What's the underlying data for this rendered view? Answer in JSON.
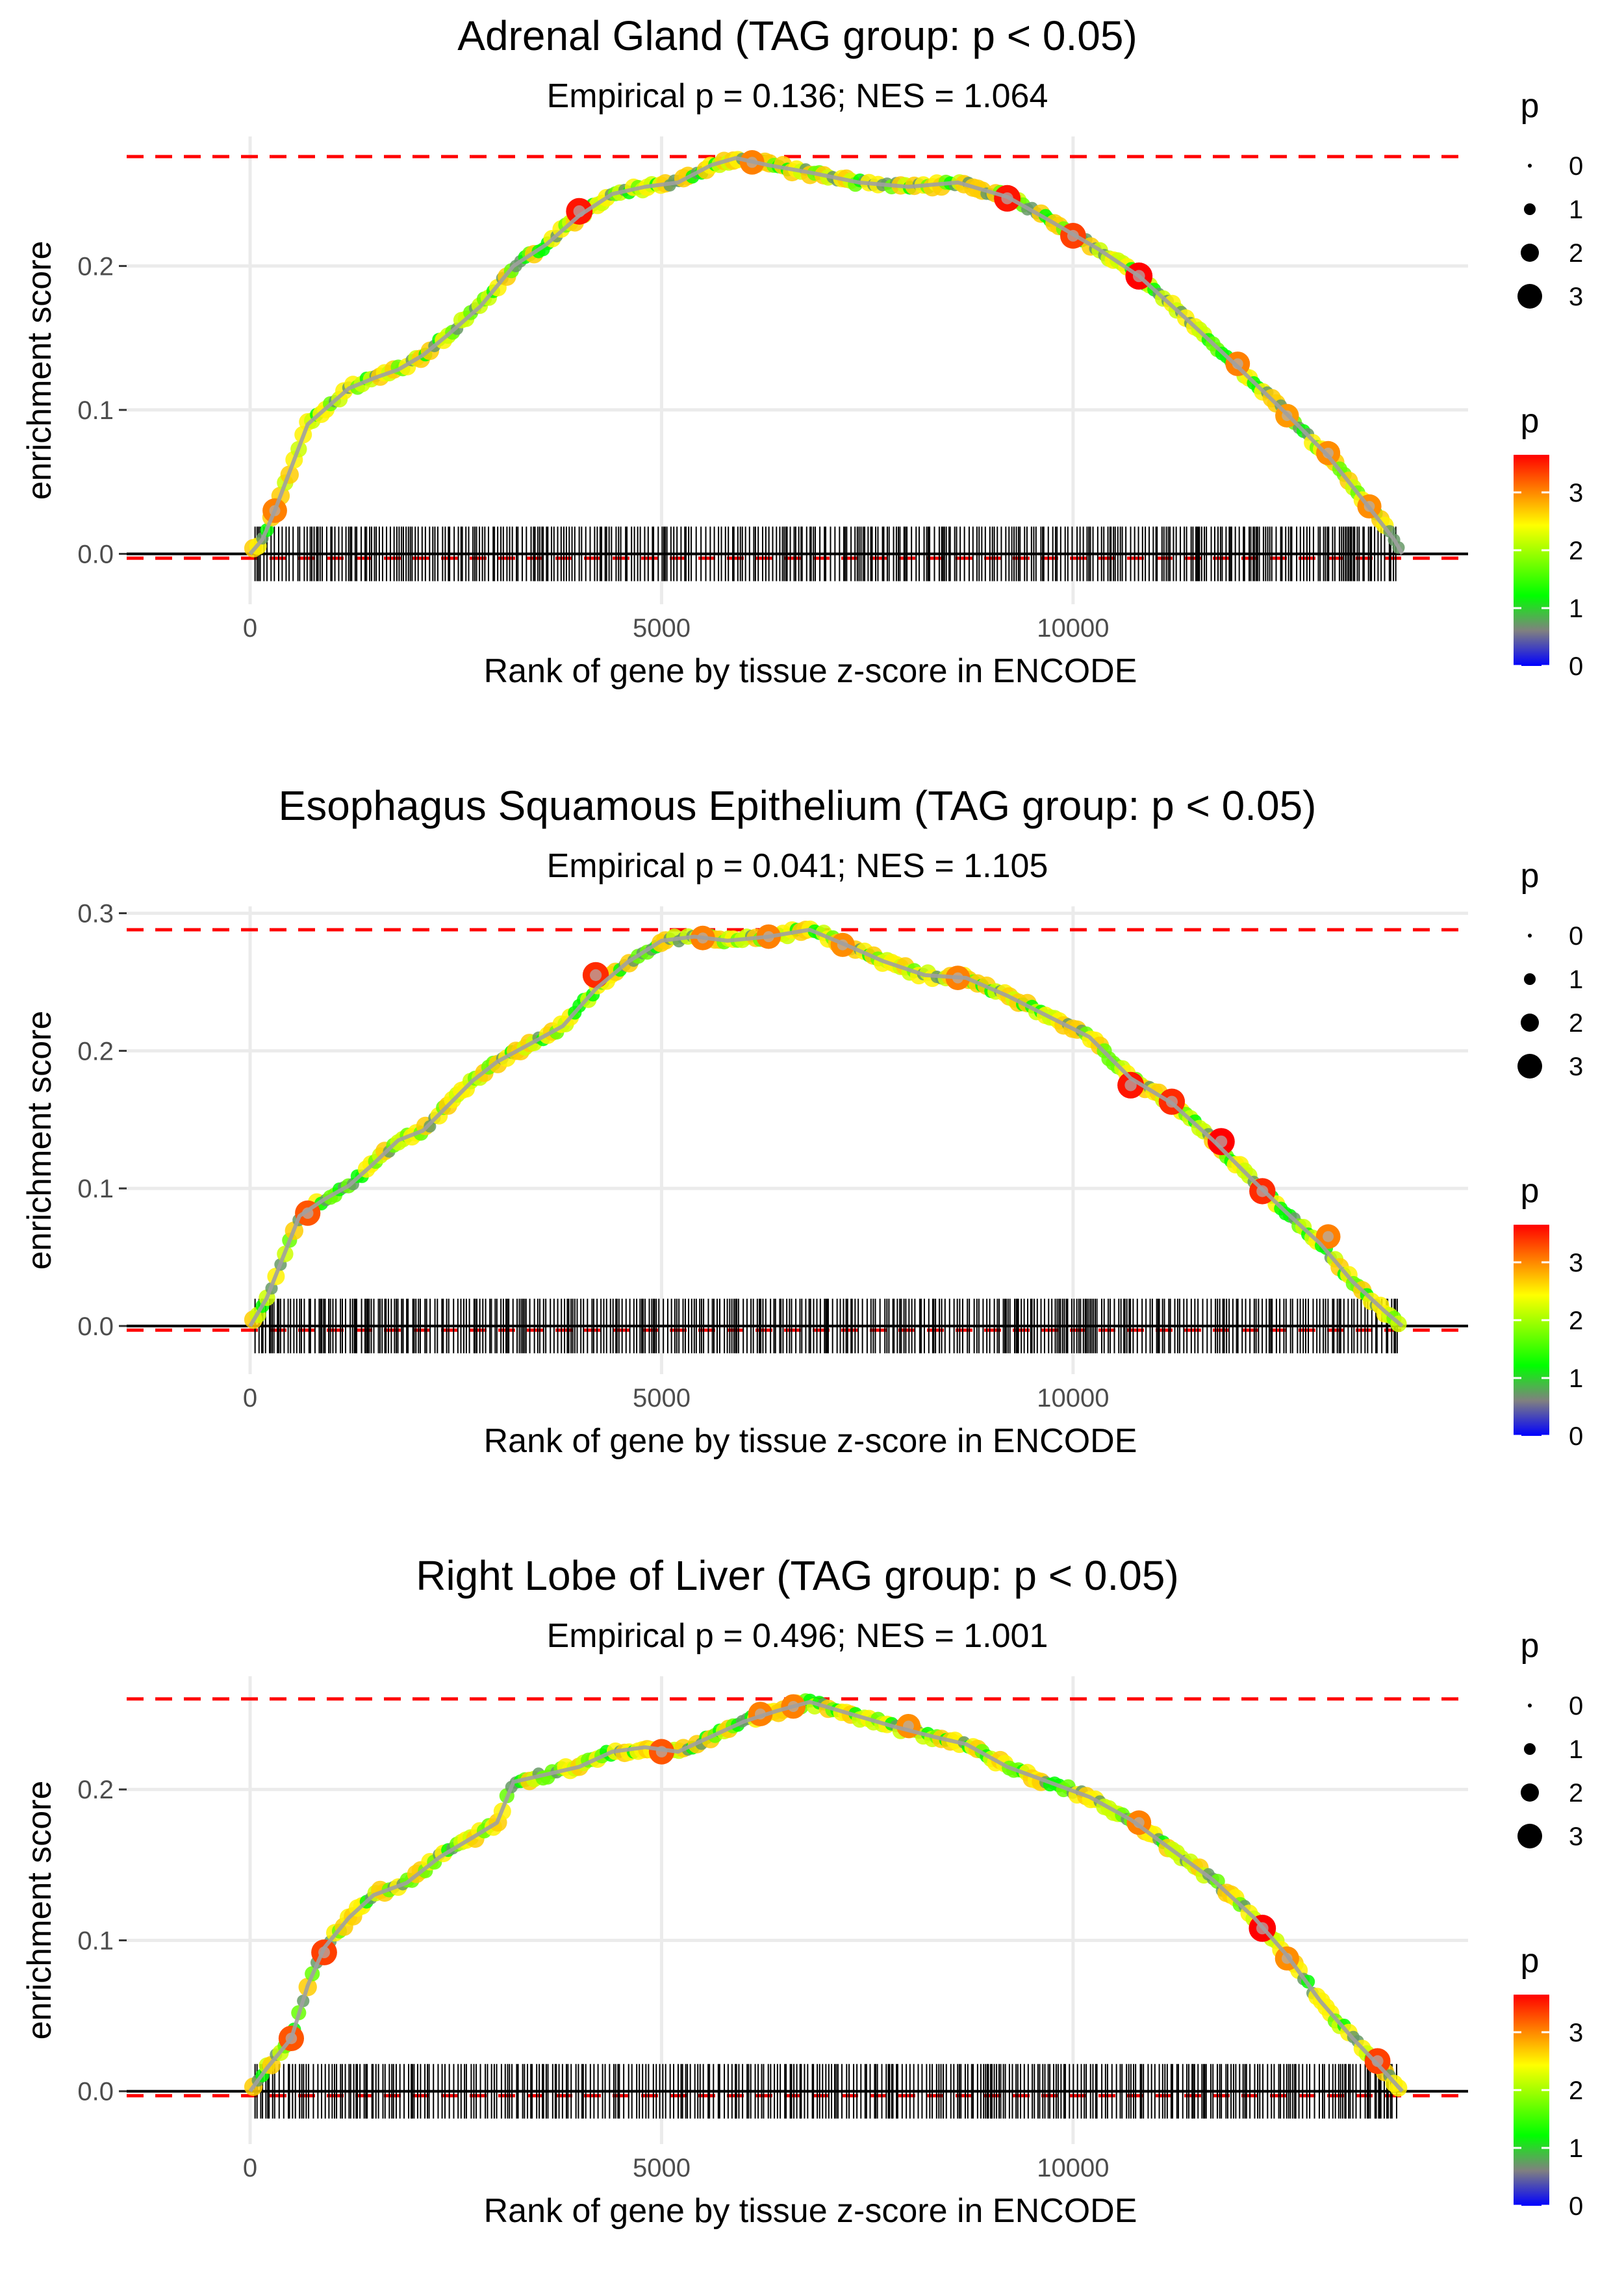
{
  "chart_data": [
    {
      "type": "scatter",
      "title": "Adrenal Gland (TAG group: p < 0.05)",
      "subtitle": "Empirical p = 0.136; NES = 1.064",
      "xlabel": "Rank of gene by tissue z-score in ENCODE",
      "ylabel": "enrichment score",
      "xlim": [
        -1500,
        14800
      ],
      "ylim": [
        -0.035,
        0.29
      ],
      "xticks": [
        0,
        5000,
        10000
      ],
      "xtick_labels": [
        "0",
        "5000",
        "10000"
      ],
      "yticks": [
        0.0,
        0.1,
        0.2
      ],
      "ytick_labels": [
        "0.0",
        "0.1",
        "0.2"
      ],
      "max_es": 0.276,
      "min_es": -0.003,
      "gene_count": 14000,
      "curve": [
        [
          0,
          0
        ],
        [
          150,
          0.01
        ],
        [
          300,
          0.03
        ],
        [
          500,
          0.06
        ],
        [
          700,
          0.09
        ],
        [
          900,
          0.1
        ],
        [
          1200,
          0.115
        ],
        [
          1500,
          0.122
        ],
        [
          1800,
          0.128
        ],
        [
          2100,
          0.138
        ],
        [
          2400,
          0.152
        ],
        [
          2800,
          0.172
        ],
        [
          3200,
          0.2
        ],
        [
          3600,
          0.215
        ],
        [
          4000,
          0.235
        ],
        [
          4400,
          0.25
        ],
        [
          4800,
          0.255
        ],
        [
          5200,
          0.258
        ],
        [
          5600,
          0.27
        ],
        [
          5900,
          0.275
        ],
        [
          6300,
          0.27
        ],
        [
          6800,
          0.265
        ],
        [
          7400,
          0.258
        ],
        [
          8000,
          0.255
        ],
        [
          8600,
          0.258
        ],
        [
          9200,
          0.248
        ],
        [
          9700,
          0.232
        ],
        [
          10300,
          0.212
        ],
        [
          10800,
          0.193
        ],
        [
          11400,
          0.162
        ],
        [
          12000,
          0.13
        ],
        [
          12600,
          0.097
        ],
        [
          13100,
          0.068
        ],
        [
          13600,
          0.032
        ],
        [
          13900,
          0.01
        ],
        [
          14000,
          0
        ]
      ],
      "highlights": [
        [
          300,
          0.03,
          3
        ],
        [
          4000,
          0.238,
          3.5
        ],
        [
          6100,
          0.272,
          3
        ],
        [
          9200,
          0.247,
          3.5
        ],
        [
          10000,
          0.221,
          3.3
        ],
        [
          10800,
          0.193,
          3.6
        ],
        [
          12000,
          0.132,
          3
        ],
        [
          12600,
          0.096,
          2.8
        ],
        [
          13100,
          0.07,
          2.9
        ],
        [
          13600,
          0.033,
          2.9
        ]
      ],
      "size_legend": {
        "title": "p",
        "labels": [
          "0",
          "1",
          "2",
          "3"
        ]
      },
      "color_legend": {
        "title": "p",
        "labels": [
          "3",
          "2",
          "1",
          "0"
        ]
      }
    },
    {
      "type": "scatter",
      "title": "Esophagus Squamous Epithelium (TAG group: p < 0.05)",
      "subtitle": "Empirical p = 0.041; NES = 1.105",
      "xlabel": "Rank of gene by tissue z-score in ENCODE",
      "ylabel": "enrichment score",
      "xlim": [
        -1500,
        14800
      ],
      "ylim": [
        -0.035,
        0.305
      ],
      "xticks": [
        0,
        5000,
        10000
      ],
      "xtick_labels": [
        "0",
        "5000",
        "10000"
      ],
      "yticks": [
        0.0,
        0.1,
        0.2,
        0.3
      ],
      "ytick_labels": [
        "0.0",
        "0.1",
        "0.2",
        "0.3"
      ],
      "max_es": 0.288,
      "min_es": -0.003,
      "gene_count": 14000,
      "curve": [
        [
          0,
          0
        ],
        [
          200,
          0.02
        ],
        [
          400,
          0.05
        ],
        [
          600,
          0.08
        ],
        [
          900,
          0.092
        ],
        [
          1200,
          0.102
        ],
        [
          1500,
          0.118
        ],
        [
          1800,
          0.135
        ],
        [
          2100,
          0.142
        ],
        [
          2400,
          0.16
        ],
        [
          2700,
          0.178
        ],
        [
          3000,
          0.192
        ],
        [
          3400,
          0.205
        ],
        [
          3800,
          0.218
        ],
        [
          4200,
          0.245
        ],
        [
          4600,
          0.265
        ],
        [
          5000,
          0.28
        ],
        [
          5400,
          0.283
        ],
        [
          5800,
          0.28
        ],
        [
          6300,
          0.283
        ],
        [
          6800,
          0.288
        ],
        [
          7200,
          0.278
        ],
        [
          7700,
          0.265
        ],
        [
          8200,
          0.255
        ],
        [
          8700,
          0.253
        ],
        [
          9200,
          0.24
        ],
        [
          9700,
          0.225
        ],
        [
          10200,
          0.21
        ],
        [
          10700,
          0.18
        ],
        [
          11200,
          0.162
        ],
        [
          11700,
          0.135
        ],
        [
          12200,
          0.105
        ],
        [
          12600,
          0.082
        ],
        [
          13000,
          0.06
        ],
        [
          13400,
          0.032
        ],
        [
          13800,
          0.01
        ],
        [
          14000,
          0
        ]
      ],
      "highlights": [
        [
          700,
          0.082,
          3.2
        ],
        [
          4200,
          0.255,
          3.4
        ],
        [
          5500,
          0.282,
          3
        ],
        [
          6300,
          0.283,
          3
        ],
        [
          7200,
          0.277,
          2.9
        ],
        [
          8600,
          0.253,
          3
        ],
        [
          10700,
          0.175,
          3.5
        ],
        [
          11200,
          0.163,
          3.4
        ],
        [
          11800,
          0.134,
          3.6
        ],
        [
          12300,
          0.098,
          3.4
        ],
        [
          13100,
          0.065,
          3
        ]
      ],
      "size_legend": {
        "title": "p",
        "labels": [
          "0",
          "1",
          "2",
          "3"
        ]
      },
      "color_legend": {
        "title": "p",
        "labels": [
          "3",
          "2",
          "1",
          "0"
        ]
      }
    },
    {
      "type": "scatter",
      "title": "Right Lobe of Liver (TAG group: p < 0.05)",
      "subtitle": "Empirical p = 0.496; NES = 1.001",
      "xlabel": "Rank of gene by tissue z-score in ENCODE",
      "ylabel": "enrichment score",
      "xlim": [
        -1500,
        14800
      ],
      "ylim": [
        -0.035,
        0.275
      ],
      "xticks": [
        0,
        5000,
        10000
      ],
      "xtick_labels": [
        "0",
        "5000",
        "10000"
      ],
      "yticks": [
        0.0,
        0.1,
        0.2
      ],
      "ytick_labels": [
        "0.0",
        "0.1",
        "0.2"
      ],
      "max_es": 0.26,
      "min_es": -0.003,
      "gene_count": 14000,
      "curve": [
        [
          0,
          0
        ],
        [
          200,
          0.015
        ],
        [
          500,
          0.035
        ],
        [
          700,
          0.07
        ],
        [
          900,
          0.095
        ],
        [
          1200,
          0.115
        ],
        [
          1500,
          0.13
        ],
        [
          1900,
          0.138
        ],
        [
          2300,
          0.155
        ],
        [
          2700,
          0.168
        ],
        [
          3000,
          0.178
        ],
        [
          3200,
          0.205
        ],
        [
          3600,
          0.21
        ],
        [
          4000,
          0.215
        ],
        [
          4400,
          0.225
        ],
        [
          4800,
          0.228
        ],
        [
          5200,
          0.225
        ],
        [
          5600,
          0.235
        ],
        [
          6000,
          0.245
        ],
        [
          6400,
          0.252
        ],
        [
          6800,
          0.258
        ],
        [
          7300,
          0.25
        ],
        [
          7800,
          0.242
        ],
        [
          8300,
          0.235
        ],
        [
          8700,
          0.23
        ],
        [
          9200,
          0.215
        ],
        [
          9700,
          0.205
        ],
        [
          10200,
          0.195
        ],
        [
          10700,
          0.18
        ],
        [
          11200,
          0.16
        ],
        [
          11700,
          0.14
        ],
        [
          12200,
          0.115
        ],
        [
          12600,
          0.09
        ],
        [
          13000,
          0.06
        ],
        [
          13400,
          0.035
        ],
        [
          13800,
          0.012
        ],
        [
          14000,
          0
        ]
      ],
      "highlights": [
        [
          500,
          0.035,
          3.2
        ],
        [
          900,
          0.092,
          3.3
        ],
        [
          5000,
          0.225,
          3.2
        ],
        [
          6200,
          0.25,
          3
        ],
        [
          6600,
          0.255,
          3
        ],
        [
          8000,
          0.242,
          2.9
        ],
        [
          10800,
          0.178,
          3
        ],
        [
          12300,
          0.108,
          3.6
        ],
        [
          12600,
          0.088,
          2.9
        ],
        [
          13700,
          0.02,
          3.3
        ]
      ],
      "size_legend": {
        "title": "p",
        "labels": [
          "0",
          "1",
          "2",
          "3"
        ]
      },
      "color_legend": {
        "title": "p",
        "labels": [
          "3",
          "2",
          "1",
          "0"
        ]
      }
    }
  ],
  "colors": {
    "grid": "#ebebeb",
    "max_line": "#ff0000",
    "curve": "#a0a0a0",
    "colorbar": [
      "#ff0000",
      "#ff8000",
      "#ffff00",
      "#80ff00",
      "#00ff00",
      "#808080",
      "#0000ff"
    ]
  }
}
